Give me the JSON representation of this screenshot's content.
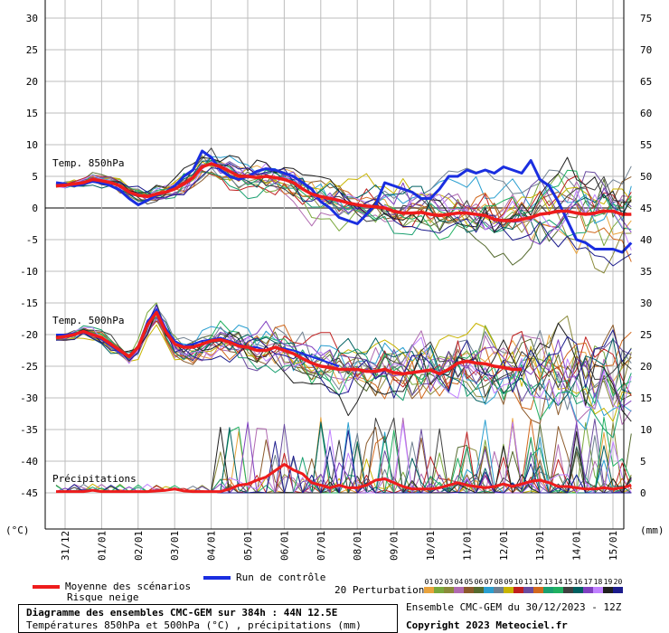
{
  "chart_data": {
    "type": "line",
    "title": "Diagramme des ensembles CMC-GEM sur 384h : 44N 12.5E",
    "subtitle": "Températures 850hPa et 500hPa (°C) , précipitations (mm)",
    "left_axis": {
      "unit": "(°C)",
      "ticks": [
        30,
        25,
        20,
        15,
        10,
        5,
        0,
        -5,
        -10,
        -15,
        -20,
        -25,
        -30,
        -35,
        -40,
        -45
      ],
      "range": [
        -50,
        30
      ]
    },
    "right_axis": {
      "unit": "(mm)",
      "ticks": [
        75,
        70,
        65,
        60,
        55,
        50,
        45,
        40,
        35,
        30,
        25,
        20,
        15,
        10,
        5,
        0
      ]
    },
    "x_labels": [
      "31/12",
      "01/01",
      "02/01",
      "03/01",
      "04/01",
      "05/01",
      "06/01",
      "07/01",
      "08/01",
      "09/01",
      "10/01",
      "11/01",
      "12/01",
      "13/01",
      "14/01",
      "15/01"
    ],
    "x_steps_per_day": 4,
    "panel_labels": {
      "t850": "Temp. 850hPa",
      "t500": "Temp. 500hPa",
      "precip": "Précipitations"
    },
    "t850_mean": [
      3.5,
      3.6,
      3.8,
      4.0,
      4.5,
      4.3,
      4.0,
      3.5,
      2.5,
      2.0,
      1.8,
      2.2,
      2.5,
      3.0,
      3.8,
      4.8,
      6.5,
      7.0,
      6.5,
      5.8,
      5.0,
      5.0,
      4.8,
      5.0,
      4.8,
      4.5,
      4.0,
      3.0,
      2.2,
      1.8,
      1.5,
      1.2,
      0.8,
      0.5,
      0.3,
      0.2,
      0.0,
      -0.5,
      -0.8,
      -0.8,
      -0.7,
      -1.0,
      -1.2,
      -1.0,
      -0.8,
      -0.8,
      -1.0,
      -1.2,
      -1.8,
      -2.0,
      -2.0,
      -1.8,
      -1.5,
      -1.0,
      -0.8,
      -0.5,
      -0.5,
      -0.8,
      -1.0,
      -0.8,
      -0.5,
      -0.5,
      -1.0,
      -1.0
    ],
    "t850_control": [
      4.0,
      3.8,
      3.5,
      3.8,
      4.2,
      4.0,
      3.5,
      2.8,
      1.5,
      0.5,
      1.2,
      2.0,
      2.5,
      3.5,
      5.0,
      6.0,
      9.0,
      8.0,
      6.0,
      5.0,
      4.5,
      5.0,
      5.8,
      6.2,
      6.0,
      5.5,
      5.0,
      4.0,
      3.0,
      1.0,
      0.0,
      -1.5,
      -2.0,
      -2.5,
      -1.0,
      0.5,
      4.0,
      3.5,
      3.0,
      2.5,
      1.5,
      1.5,
      3.0,
      5.0,
      5.0,
      6.0,
      5.5,
      6.0,
      5.5,
      6.5,
      6.0,
      5.5,
      7.5,
      4.5,
      3.5,
      1.0,
      -2.0,
      -5.0,
      -5.5,
      -6.5,
      -6.5,
      -6.5,
      -7.0,
      -5.5
    ],
    "t500_mean": [
      -20.5,
      -20.3,
      -20.0,
      -19.5,
      -20.0,
      -20.5,
      -21.5,
      -22.5,
      -23.5,
      -22.0,
      -18.5,
      -16.5,
      -19.5,
      -21.5,
      -22.0,
      -22.0,
      -21.5,
      -21.0,
      -20.8,
      -21.2,
      -21.8,
      -22.0,
      -22.5,
      -22.5,
      -22.0,
      -22.5,
      -23.0,
      -23.8,
      -24.5,
      -25.0,
      -25.2,
      -25.5,
      -25.5,
      -25.5,
      -25.8,
      -25.8,
      -25.5,
      -26.0,
      -26.2,
      -26.0,
      -25.8,
      -25.6,
      -26.2,
      -25.5,
      -24.5,
      -24.2,
      -24.5,
      -24.6,
      -25.0,
      -25.2,
      -25.5,
      -25.5
    ],
    "t500_control": [
      -20.0,
      -20.0,
      -19.8,
      -19.5,
      -20.0,
      -20.8,
      -21.8,
      -22.8,
      -23.5,
      -22.0,
      -18.0,
      -16.0,
      -19.0,
      -21.0,
      -21.8,
      -21.5,
      -21.0,
      -20.8,
      -20.5,
      -21.0,
      -21.5,
      -22.0,
      -22.0,
      -22.5,
      -22.0,
      -22.2,
      -22.5,
      -23.0,
      -23.5,
      -24.0,
      -24.5,
      -25.0
    ],
    "precip_mean": [
      0.2,
      0.2,
      0.2,
      0.2,
      0.4,
      0.2,
      0.2,
      0.2,
      0.2,
      0.2,
      0.2,
      0.3,
      0.4,
      0.6,
      0.3,
      0.2,
      0.2,
      0.2,
      0.2,
      0.6,
      1.2,
      1.4,
      2.0,
      2.5,
      3.5,
      4.5,
      3.6,
      3.0,
      1.6,
      1.2,
      0.8,
      1.2,
      0.8,
      0.8,
      1.2,
      2.0,
      2.2,
      1.6,
      1.0,
      0.6,
      0.6,
      0.6,
      0.8,
      1.2,
      1.6,
      1.2,
      1.0,
      0.8,
      1.0,
      1.4,
      1.0,
      1.4,
      1.8,
      2.0,
      1.6,
      1.0,
      1.0,
      0.8,
      0.6,
      0.6,
      0.8,
      0.6,
      0.8,
      1.2
    ],
    "legend": {
      "mean_label": "Moyenne des scénarios",
      "snow_label": "Risque neige",
      "control_label": "Run de contrôle",
      "perturbations_label": "20 Perturbations",
      "perturbation_ids": [
        "01",
        "02",
        "03",
        "04",
        "05",
        "06",
        "07",
        "08",
        "09",
        "10",
        "11",
        "12",
        "13",
        "14",
        "15",
        "16",
        "17",
        "18",
        "19",
        "20"
      ]
    },
    "colors": {
      "mean": "#ee1c1c",
      "control": "#1a2ee0",
      "grid": "#bdbdbd",
      "zero_line": "#808080",
      "perturbations": [
        "#e8a33d",
        "#7aa83c",
        "#8a8a3a",
        "#b06ab0",
        "#8b5a2b",
        "#556b2f",
        "#2a9fd0",
        "#708090",
        "#c8b400",
        "#c02020",
        "#6a4ca0",
        "#d2691e",
        "#1aa070",
        "#20b060",
        "#404040",
        "#006060",
        "#8040c0",
        "#c080ff",
        "#202020",
        "#1c1c8c"
      ]
    },
    "run_info": "Ensemble CMC-GEM du 30/12/2023 - 12Z",
    "copyright": "Copyright 2023 Meteociel.fr"
  }
}
